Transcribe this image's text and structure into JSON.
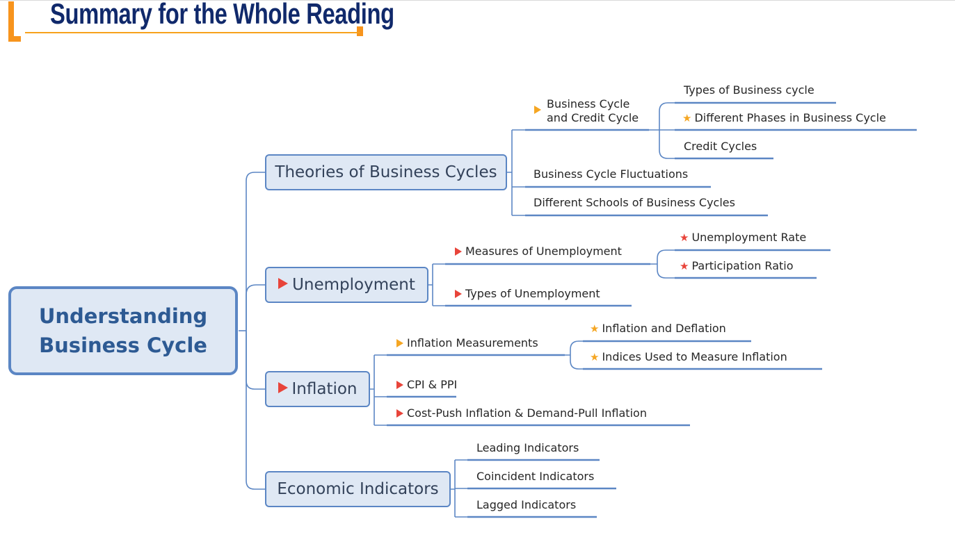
{
  "header": {
    "title": "Summary for the Whole Reading"
  },
  "root": {
    "label_line1": "Understanding",
    "label_line2": "Business Cycle"
  },
  "branches": [
    {
      "label": "Theories of Business Cycles",
      "children": [
        {
          "label_line1": "Business Cycle",
          "label_line2": "and Credit Cycle",
          "marker": "orange-flag",
          "children": [
            {
              "label": "Types of Business cycle"
            },
            {
              "label": "Different Phases in Business Cycle",
              "marker": "orange-star"
            },
            {
              "label": "Credit Cycles"
            }
          ]
        },
        {
          "label": "Business Cycle Fluctuations"
        },
        {
          "label": "Different Schools of Business Cycles"
        }
      ]
    },
    {
      "label": "Unemployment",
      "marker": "red-flag",
      "children": [
        {
          "label": "Measures of Unemployment",
          "marker": "red-flag",
          "children": [
            {
              "label": "Unemployment Rate",
              "marker": "red-star"
            },
            {
              "label": "Participation Ratio",
              "marker": "red-star"
            }
          ]
        },
        {
          "label": "Types of Unemployment",
          "marker": "red-flag"
        }
      ]
    },
    {
      "label": "Inflation",
      "marker": "red-flag",
      "children": [
        {
          "label": "Inflation Measurements",
          "marker": "orange-flag",
          "children": [
            {
              "label": "Inflation and Deflation",
              "marker": "orange-star"
            },
            {
              "label": "Indices Used to Measure Inflation",
              "marker": "orange-star"
            }
          ]
        },
        {
          "label": "CPI & PPI",
          "marker": "red-flag"
        },
        {
          "label": "Cost-Push Inflation & Demand-Pull Inflation",
          "marker": "red-flag"
        }
      ]
    },
    {
      "label": "Economic Indicators",
      "children": [
        {
          "label": "Leading Indicators"
        },
        {
          "label": "Coincident Indicators"
        },
        {
          "label": "Lagged Indicators"
        }
      ]
    }
  ],
  "colors": {
    "title": "#10296b",
    "accent": "#f7941d",
    "line": "#5b86c4",
    "box_fill": "#dfe8f4",
    "flag_red": "#e8443a",
    "flag_orange": "#f5a623"
  }
}
